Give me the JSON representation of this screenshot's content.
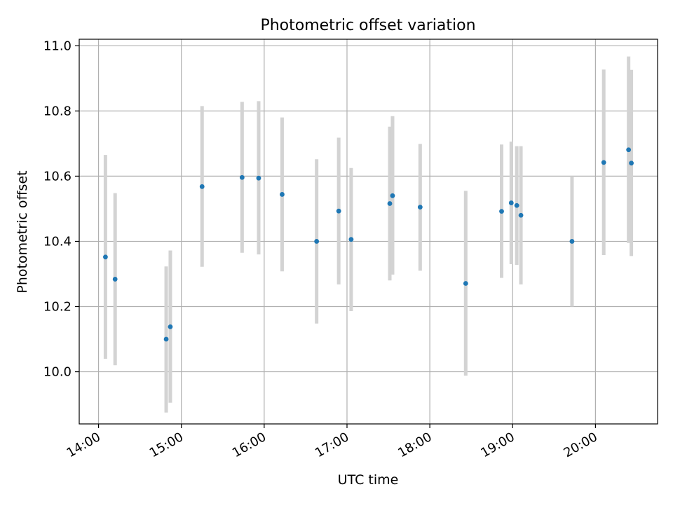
{
  "chart_data": {
    "type": "scatter",
    "title": "Photometric offset variation",
    "xlabel": "UTC time",
    "ylabel": "Photometric offset",
    "xlim": [
      "13:46",
      "20:45"
    ],
    "ylim": [
      9.84,
      11.02
    ],
    "x_ticks": [
      "14:00",
      "15:00",
      "16:00",
      "17:00",
      "18:00",
      "19:00",
      "20:00"
    ],
    "y_ticks": [
      10.0,
      10.2,
      10.4,
      10.6,
      10.8,
      11.0
    ],
    "y_tick_labels": [
      "10.0",
      "10.2",
      "10.4",
      "10.6",
      "10.8",
      "11.0"
    ],
    "grid": true,
    "point_color": "#1f77b4",
    "errorbar_color": "#d3d3d3",
    "points": [
      {
        "x": "14:05",
        "y": 10.352,
        "ylow": 10.04,
        "yhigh": 10.665
      },
      {
        "x": "14:12",
        "y": 10.284,
        "ylow": 10.02,
        "yhigh": 10.548
      },
      {
        "x": "14:49",
        "y": 10.1,
        "ylow": 9.875,
        "yhigh": 10.323
      },
      {
        "x": "14:52",
        "y": 10.138,
        "ylow": 9.905,
        "yhigh": 10.372
      },
      {
        "x": "15:15",
        "y": 10.568,
        "ylow": 10.322,
        "yhigh": 10.815
      },
      {
        "x": "15:44",
        "y": 10.596,
        "ylow": 10.365,
        "yhigh": 10.828
      },
      {
        "x": "15:56",
        "y": 10.594,
        "ylow": 10.36,
        "yhigh": 10.83
      },
      {
        "x": "16:13",
        "y": 10.544,
        "ylow": 10.308,
        "yhigh": 10.78
      },
      {
        "x": "16:38",
        "y": 10.4,
        "ylow": 10.148,
        "yhigh": 10.652
      },
      {
        "x": "16:54",
        "y": 10.493,
        "ylow": 10.268,
        "yhigh": 10.718
      },
      {
        "x": "17:03",
        "y": 10.406,
        "ylow": 10.186,
        "yhigh": 10.625
      },
      {
        "x": "17:31",
        "y": 10.516,
        "ylow": 10.28,
        "yhigh": 10.752
      },
      {
        "x": "17:33",
        "y": 10.54,
        "ylow": 10.298,
        "yhigh": 10.784
      },
      {
        "x": "17:53",
        "y": 10.505,
        "ylow": 10.31,
        "yhigh": 10.699
      },
      {
        "x": "18:26",
        "y": 10.271,
        "ylow": 9.988,
        "yhigh": 10.555
      },
      {
        "x": "18:52",
        "y": 10.492,
        "ylow": 10.288,
        "yhigh": 10.697
      },
      {
        "x": "18:59",
        "y": 10.518,
        "ylow": 10.33,
        "yhigh": 10.706
      },
      {
        "x": "19:03",
        "y": 10.51,
        "ylow": 10.328,
        "yhigh": 10.692
      },
      {
        "x": "19:06",
        "y": 10.48,
        "ylow": 10.268,
        "yhigh": 10.692
      },
      {
        "x": "19:43",
        "y": 10.4,
        "ylow": 10.2,
        "yhigh": 10.6
      },
      {
        "x": "20:06",
        "y": 10.642,
        "ylow": 10.358,
        "yhigh": 10.927
      },
      {
        "x": "20:24",
        "y": 10.681,
        "ylow": 10.395,
        "yhigh": 10.967
      },
      {
        "x": "20:26",
        "y": 10.64,
        "ylow": 10.355,
        "yhigh": 10.926
      }
    ]
  }
}
